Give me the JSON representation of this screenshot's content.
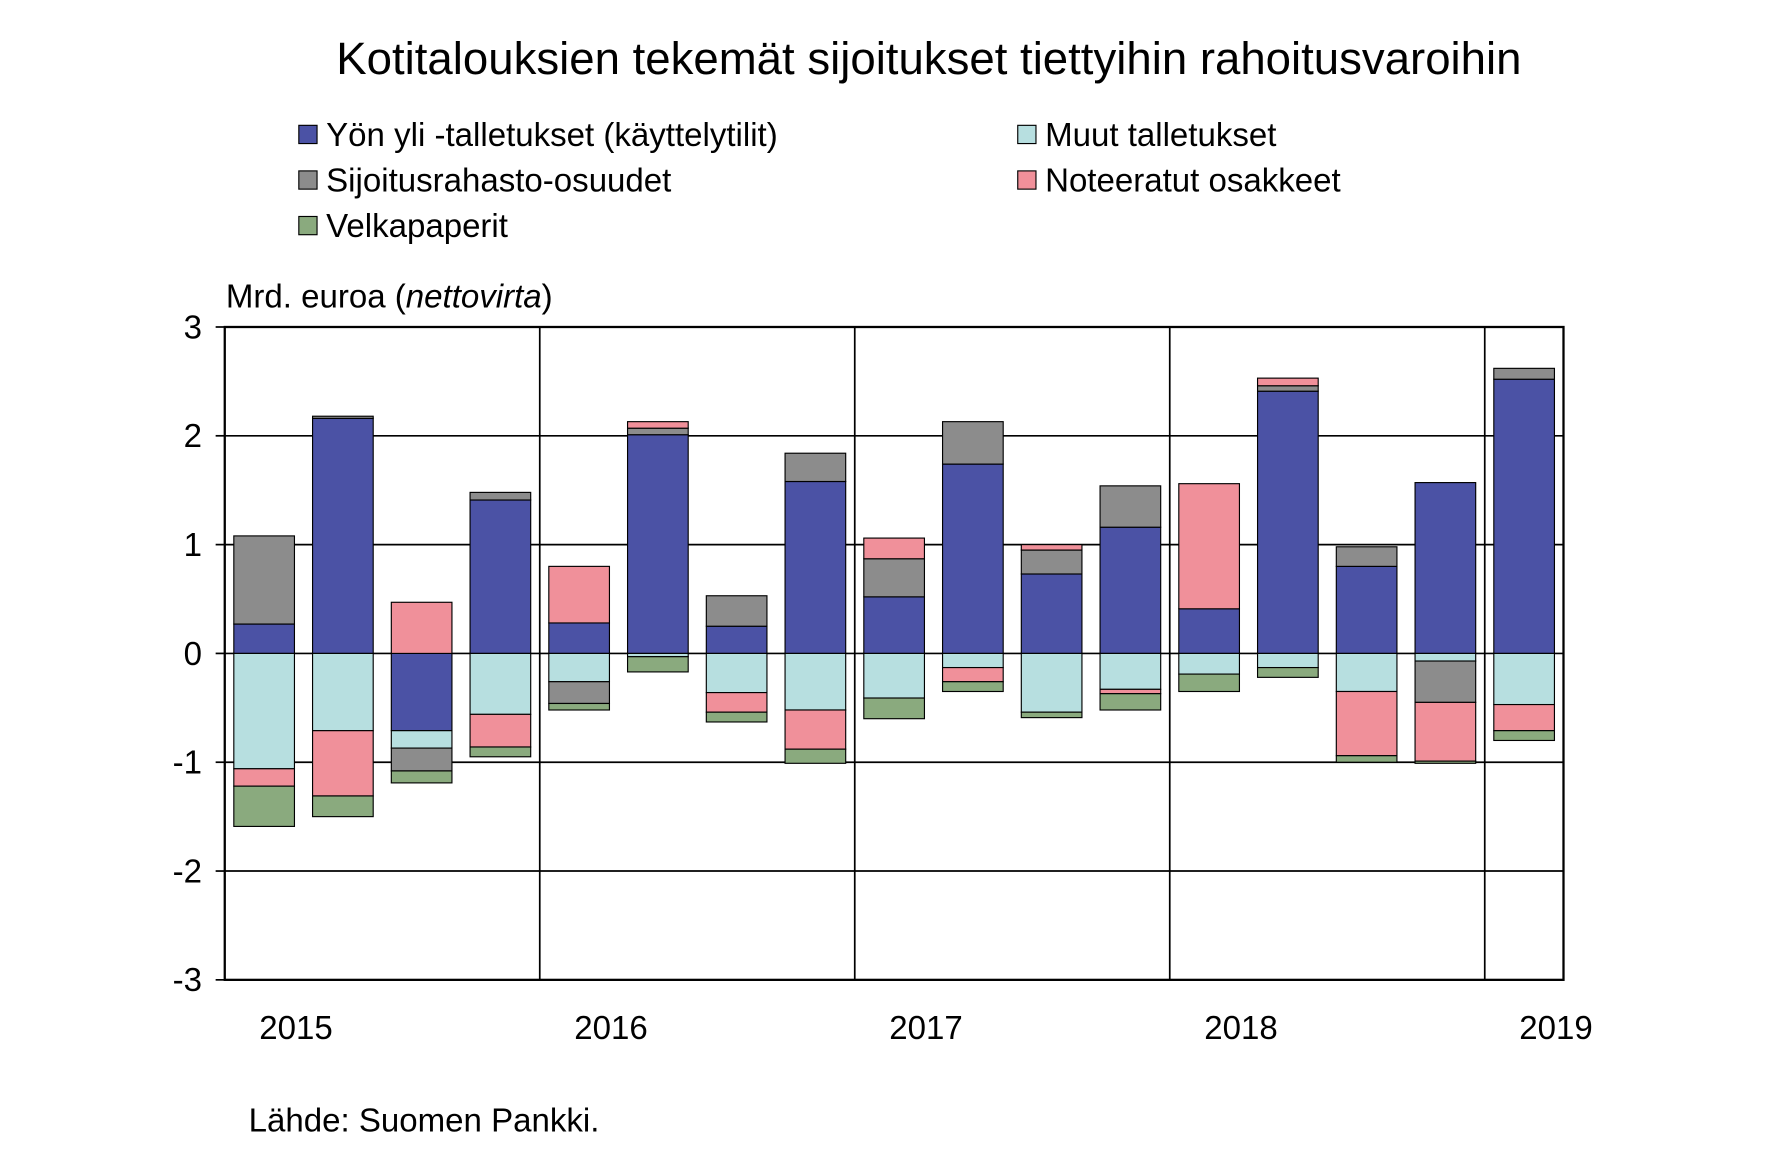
{
  "chart_data": {
    "type": "stacked-bar",
    "title": "Kotitalouksien tekemät sijoitukset tiettyihin rahoitusvaroihin",
    "ylabel_parts": [
      "Mrd. euroa (",
      "nettovirta",
      ")"
    ],
    "source": "Lähde: Suomen Pankki.",
    "categories": [
      "2015",
      null,
      null,
      null,
      "2016",
      null,
      null,
      null,
      "2017",
      null,
      null,
      null,
      "2018",
      null,
      null,
      null,
      "2019"
    ],
    "series": [
      {
        "name": "Yön yli -talletukset (käyttelytilit)",
        "color": "#4b52a5",
        "values": [
          0.27,
          2.16,
          -0.71,
          1.41,
          0.28,
          2.01,
          0.25,
          1.58,
          0.52,
          1.74,
          0.73,
          1.16,
          0.41,
          2.41,
          0.8,
          1.57,
          2.52
        ]
      },
      {
        "name": "Muut talletukset",
        "color": "#b7dfe0",
        "values": [
          -1.06,
          -0.71,
          -0.16,
          -0.56,
          -0.26,
          -0.03,
          -0.36,
          -0.52,
          -0.41,
          -0.13,
          -0.54,
          -0.33,
          -0.19,
          -0.13,
          -0.35,
          -0.07,
          -0.47
        ]
      },
      {
        "name": "Sijoitusrahasto-osuudet",
        "color": "#8c8c8c",
        "values": [
          0.81,
          0.02,
          -0.21,
          0.07,
          -0.2,
          0.06,
          0.28,
          0.26,
          0.35,
          0.39,
          0.22,
          0.38,
          0,
          0.05,
          0.18,
          -0.38,
          0.1
        ]
      },
      {
        "name": "Noteeratut osakkeet",
        "color": "#f0909a",
        "values": [
          -0.16,
          -0.6,
          0.47,
          -0.3,
          0.52,
          0.06,
          -0.18,
          -0.36,
          0.19,
          -0.13,
          0.05,
          -0.04,
          1.15,
          0.07,
          -0.59,
          -0.54,
          -0.24
        ]
      },
      {
        "name": "Velkapaperit",
        "color": "#8aaa7e",
        "values": [
          -0.37,
          -0.19,
          -0.11,
          -0.09,
          -0.06,
          -0.14,
          -0.09,
          -0.13,
          -0.19,
          -0.09,
          -0.05,
          -0.15,
          -0.16,
          -0.09,
          -0.06,
          -0.02,
          -0.09
        ]
      }
    ],
    "ylim": [
      -3,
      3
    ],
    "yticks": [
      -3,
      -2,
      -1,
      0,
      1,
      2,
      3
    ],
    "grid": true
  }
}
